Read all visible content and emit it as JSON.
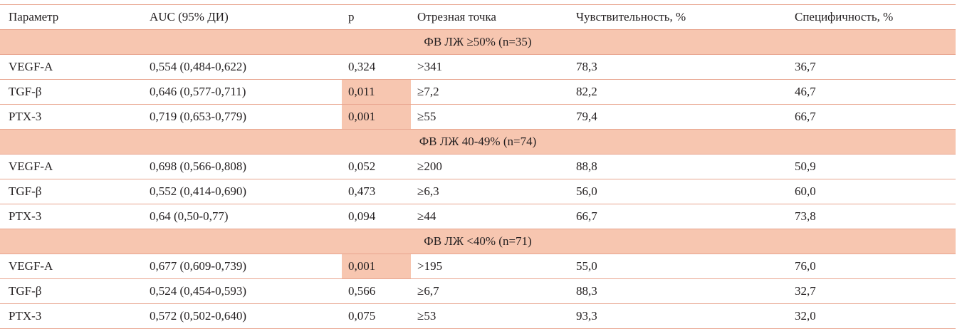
{
  "table": {
    "headers": [
      "Параметр",
      "AUC (95% ДИ)",
      "p",
      "Отрезная точка",
      "Чувствительность, %",
      "Специфичность, %"
    ],
    "groups": [
      {
        "title": "ФВ ЛЖ ≥50% (n=35)",
        "rows": [
          {
            "param": "VEGF-A",
            "auc": "0,554 (0,484-0,622)",
            "p": "0,324",
            "cutoff": ">341",
            "sens": "78,3",
            "spec": "36,7",
            "p_highlight": false
          },
          {
            "param": "TGF-β",
            "auc": "0,646 (0,577-0,711)",
            "p": "0,011",
            "cutoff": "≥7,2",
            "sens": "82,2",
            "spec": "46,7",
            "p_highlight": true
          },
          {
            "param": "PTX-3",
            "auc": "0,719 (0,653-0,779)",
            "p": "0,001",
            "cutoff": "≥55",
            "sens": "79,4",
            "spec": "66,7",
            "p_highlight": true
          }
        ]
      },
      {
        "title": "ФВ ЛЖ 40-49% (n=74)",
        "rows": [
          {
            "param": "VEGF-A",
            "auc": "0,698 (0,566-0,808)",
            "p": "0,052",
            "cutoff": "≥200",
            "sens": "88,8",
            "spec": "50,9",
            "p_highlight": false
          },
          {
            "param": "TGF-β",
            "auc": "0,552 (0,414-0,690)",
            "p": "0,473",
            "cutoff": "≥6,3",
            "sens": "56,0",
            "spec": "60,0",
            "p_highlight": false
          },
          {
            "param": "PTX-3",
            "auc": "0,64 (0,50-0,77)",
            "p": "0,094",
            "cutoff": "≥44",
            "sens": "66,7",
            "spec": "73,8",
            "p_highlight": false
          }
        ]
      },
      {
        "title": "ФВ ЛЖ <40% (n=71)",
        "rows": [
          {
            "param": "VEGF-A",
            "auc": "0,677 (0,609-0,739)",
            "p": "0,001",
            "cutoff": ">195",
            "sens": "55,0",
            "spec": "76,0",
            "p_highlight": true
          },
          {
            "param": "TGF-β",
            "auc": "0,524 (0,454-0,593)",
            "p": "0,566",
            "cutoff": "≥6,7",
            "sens": "88,3",
            "spec": "32,7",
            "p_highlight": false
          },
          {
            "param": "PTX-3",
            "auc": "0,572 (0,502-0,640)",
            "p": "0,075",
            "cutoff": "≥53",
            "sens": "93,3",
            "spec": "32,0",
            "p_highlight": false
          }
        ]
      }
    ],
    "colors": {
      "highlight": "#f7c6b0",
      "rule": "#e8a58f",
      "text": "#231f20"
    }
  }
}
